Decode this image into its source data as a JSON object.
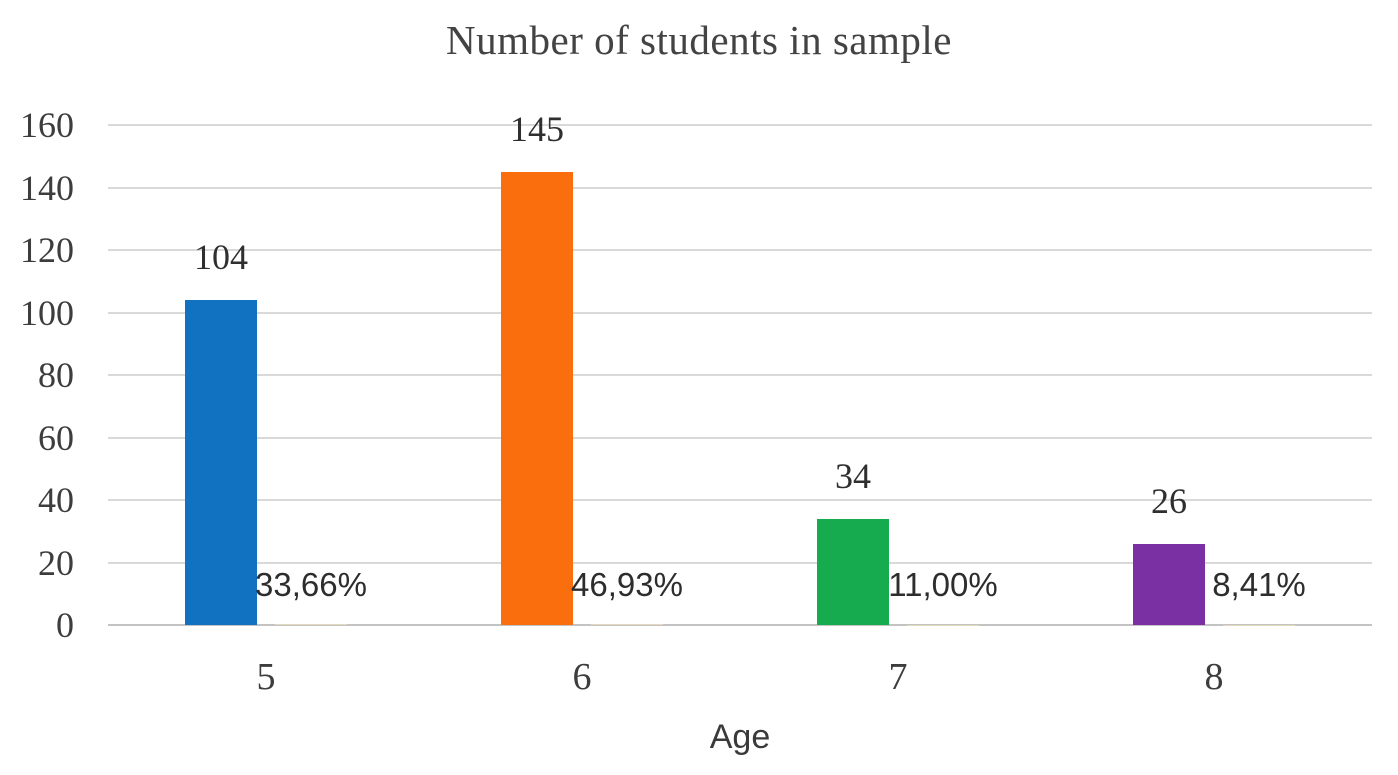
{
  "chart_data": {
    "type": "bar",
    "title": "Number of students in sample",
    "xlabel": "Age",
    "ylabel": "",
    "categories": [
      "5",
      "6",
      "7",
      "8"
    ],
    "series": [
      {
        "name": "count",
        "values": [
          104,
          145,
          34,
          26
        ],
        "labels": [
          "104",
          "145",
          "34",
          "26"
        ],
        "colors": [
          "#1272c2",
          "#fa6e0e",
          "#17ab50",
          "#7a2fa2"
        ]
      },
      {
        "name": "percent",
        "values": [
          0.3366,
          0.4693,
          0.11,
          0.0841
        ],
        "labels": [
          "33,66%",
          "46,93%",
          "11,00%",
          "8,41%"
        ],
        "color": "#e8dabf"
      }
    ],
    "ylim": [
      0,
      160
    ],
    "ytick_step": 20,
    "yticks": [
      "0",
      "20",
      "40",
      "60",
      "80",
      "100",
      "120",
      "140",
      "160"
    ],
    "grid": true,
    "legend": "none",
    "style": {
      "gridline_color": "#d9d9d9",
      "axis_line_color": "#c3c3c3",
      "text_color": "#3d3d3d",
      "background": "#ffffff"
    }
  }
}
